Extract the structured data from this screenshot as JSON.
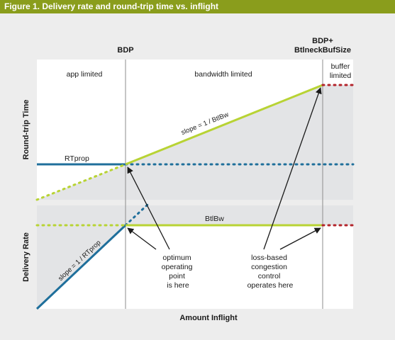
{
  "header": {
    "title": "Figure 1. Delivery rate and round-trip time vs. inflight"
  },
  "labels": {
    "bdp": "BDP",
    "bdp_plus_line1": "BDP+",
    "bdp_plus_line2": "BtlneckBufSize",
    "app_limited": "app limited",
    "bandwidth_limited": "bandwidth limited",
    "buffer_limited_line1": "buffer",
    "buffer_limited_line2": "limited",
    "y_axis_top": "Round-trip Time",
    "y_axis_bottom": "Delivery Rate",
    "x_axis": "Amount Inflight",
    "rtprop": "RTprop",
    "btlbw": "BtlBw",
    "slope_top": "slope = 1 / BtlBw",
    "slope_bottom": "slope = 1 / RTprop",
    "optimum_lines": [
      "optimum",
      "operating",
      "point",
      "is here"
    ],
    "loss_lines": [
      "loss-based",
      "congestion",
      "control",
      "operates here"
    ]
  },
  "colors": {
    "header_bg": "#8a9d1c",
    "page_bg": "#ededed",
    "panel_bg": "#ffffff",
    "shade": "#e3e4e6",
    "lime": "#b8d334",
    "blue": "#1f6f9b",
    "red": "#b3242b",
    "divider": "#8c8c8c"
  }
}
